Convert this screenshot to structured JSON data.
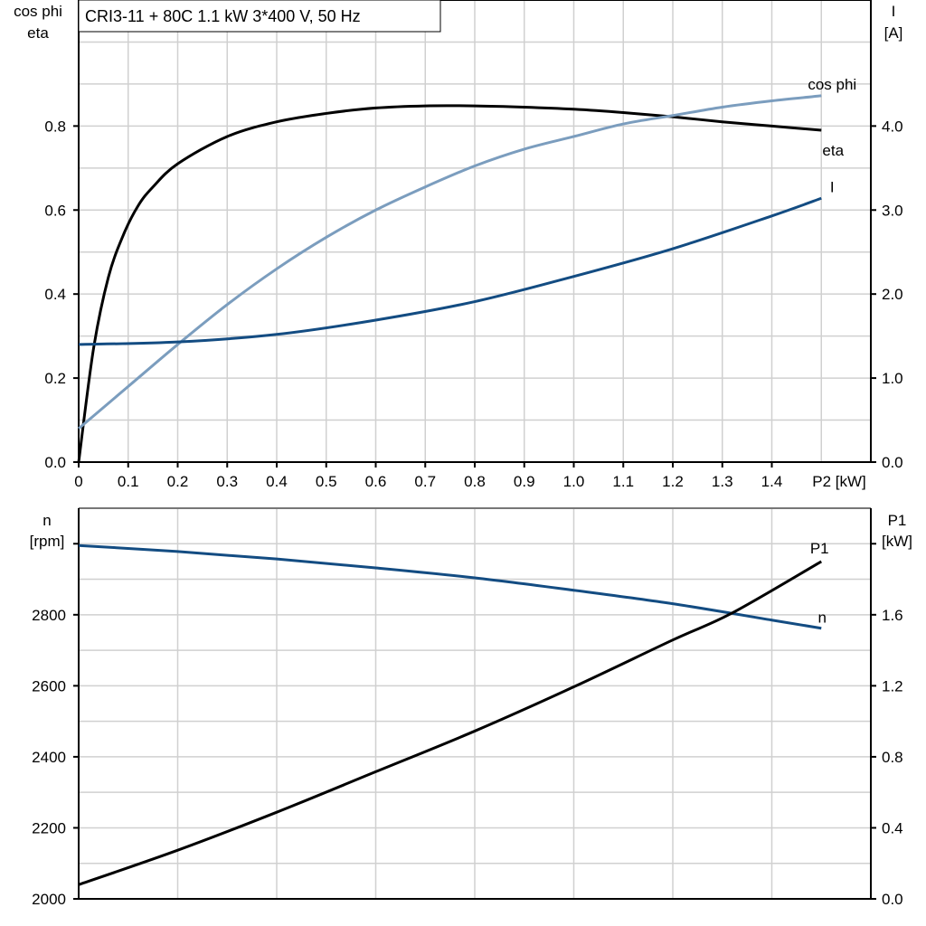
{
  "title": "CRI3-11 + 80C   1.1 kW   3*400 V, 50 Hz",
  "colors": {
    "eta": "#000000",
    "cos_phi": "#7b9dbe",
    "I": "#134c82",
    "n": "#134c82",
    "P1": "#000000"
  },
  "chart_data": [
    {
      "type": "line",
      "xlabel": "P2 [kW]",
      "xlim": [
        0,
        1.6
      ],
      "x_ticks": [
        "0",
        "0.1",
        "0.2",
        "0.3",
        "0.4",
        "0.5",
        "0.6",
        "0.7",
        "0.8",
        "0.9",
        "1.0",
        "1.1",
        "1.2",
        "1.3",
        "1.4"
      ],
      "ylabel_left": [
        "cos phi",
        "eta"
      ],
      "ylim_left": [
        0,
        1.1
      ],
      "y_ticks_left": [
        "0.0",
        "0.2",
        "0.4",
        "0.6",
        "0.8"
      ],
      "ylabel_right": [
        "I",
        "[A]"
      ],
      "ylim_right": [
        0,
        5.5
      ],
      "y_ticks_right": [
        "0.0",
        "1.0",
        "2.0",
        "3.0",
        "4.0"
      ],
      "grid": true,
      "series": [
        {
          "name": "eta",
          "axis": "left",
          "color_key": "eta",
          "x": [
            0,
            0.03,
            0.06,
            0.09,
            0.12,
            0.15,
            0.2,
            0.3,
            0.4,
            0.5,
            0.6,
            0.7,
            0.8,
            0.9,
            1.0,
            1.1,
            1.2,
            1.3,
            1.4,
            1.5
          ],
          "y": [
            0,
            0.27,
            0.44,
            0.54,
            0.61,
            0.655,
            0.71,
            0.775,
            0.81,
            0.83,
            0.843,
            0.848,
            0.848,
            0.845,
            0.84,
            0.832,
            0.822,
            0.81,
            0.8,
            0.79
          ]
        },
        {
          "name": "cos phi",
          "axis": "left",
          "color_key": "cos_phi",
          "x": [
            0,
            0.1,
            0.2,
            0.3,
            0.4,
            0.5,
            0.6,
            0.7,
            0.8,
            0.9,
            1.0,
            1.1,
            1.2,
            1.3,
            1.4,
            1.5
          ],
          "y": [
            0.08,
            0.18,
            0.28,
            0.375,
            0.46,
            0.535,
            0.6,
            0.655,
            0.705,
            0.745,
            0.775,
            0.805,
            0.825,
            0.845,
            0.86,
            0.872
          ]
        },
        {
          "name": "I",
          "axis": "right",
          "color_key": "I",
          "x": [
            0,
            0.2,
            0.4,
            0.6,
            0.8,
            1.0,
            1.2,
            1.4,
            1.5
          ],
          "y": [
            1.4,
            1.43,
            1.52,
            1.69,
            1.91,
            2.21,
            2.54,
            2.93,
            3.14
          ]
        }
      ]
    },
    {
      "type": "line",
      "xlim": [
        0,
        1.6
      ],
      "ylabel_left": [
        "n",
        "[rpm]"
      ],
      "ylim_left": [
        2000,
        3100
      ],
      "y_ticks_left": [
        "2000",
        "2200",
        "2400",
        "2600",
        "2800"
      ],
      "ylabel_right": [
        "P1",
        "[kW]"
      ],
      "ylim_right": [
        0,
        2.2
      ],
      "y_ticks_right": [
        "0.0",
        "0.4",
        "0.8",
        "1.2",
        "1.6"
      ],
      "grid": true,
      "series": [
        {
          "name": "n",
          "axis": "left",
          "color_key": "n",
          "x": [
            0,
            0.2,
            0.4,
            0.6,
            0.8,
            1.0,
            1.2,
            1.4,
            1.5
          ],
          "y": [
            2995,
            2978,
            2957,
            2932,
            2904,
            2869,
            2831,
            2785,
            2762
          ]
        },
        {
          "name": "P1",
          "axis": "right",
          "color_key": "P1",
          "x": [
            0,
            0.2,
            0.4,
            0.6,
            0.8,
            1.0,
            1.2,
            1.32,
            1.5
          ],
          "y": [
            0.08,
            0.274,
            0.488,
            0.716,
            0.945,
            1.194,
            1.458,
            1.61,
            1.9
          ]
        }
      ]
    }
  ]
}
